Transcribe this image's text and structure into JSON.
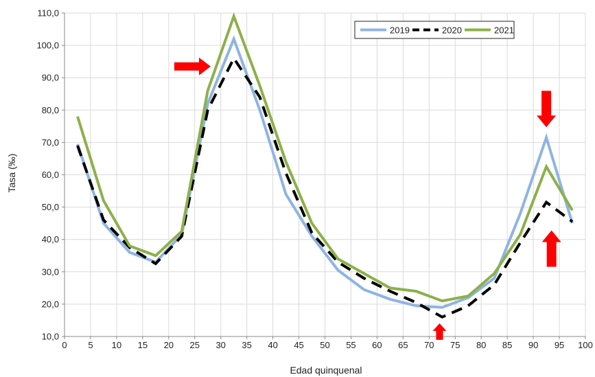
{
  "chart_data": {
    "type": "line",
    "title": "",
    "xlabel": "Edad quinquenal",
    "ylabel": "Tasa (‰)",
    "xlim": [
      0,
      100
    ],
    "ylim": [
      10,
      110
    ],
    "xticks": [
      "0",
      "5",
      "10",
      "15",
      "20",
      "25",
      "30",
      "35",
      "40",
      "45",
      "50",
      "55",
      "60",
      "65",
      "70",
      "75",
      "80",
      "85",
      "90",
      "95",
      "100"
    ],
    "yticks": [
      "10,0",
      "20,0",
      "30,0",
      "40,0",
      "50,0",
      "60,0",
      "70,0",
      "80,0",
      "90,0",
      "100,0",
      "110,0"
    ],
    "grid": true,
    "legend_position": "top-right",
    "x": [
      2.5,
      7.5,
      12.5,
      17.5,
      22.5,
      27.5,
      32.5,
      37.5,
      42.5,
      47.5,
      52.5,
      57.5,
      62.5,
      67.5,
      72.5,
      77.5,
      82.5,
      87.5,
      92.5,
      97.5
    ],
    "series": [
      {
        "name": "2019",
        "color": "#8fb4e3",
        "dash": "solid",
        "values": [
          69.5,
          45.0,
          36.0,
          33.0,
          41.5,
          82.0,
          102.0,
          80.0,
          54.0,
          41.0,
          30.5,
          24.5,
          21.5,
          19.5,
          19.0,
          22.0,
          28.0,
          48.0,
          71.5,
          45.0
        ]
      },
      {
        "name": "2020",
        "color": "#000000",
        "dash": "dashed",
        "values": [
          69.0,
          46.0,
          37.5,
          32.5,
          41.0,
          80.0,
          96.0,
          84.0,
          60.5,
          42.0,
          33.0,
          28.0,
          24.0,
          20.5,
          16.0,
          19.5,
          26.0,
          39.0,
          51.5,
          45.5
        ]
      },
      {
        "name": "2021",
        "color": "#8db04a",
        "dash": "solid",
        "values": [
          78.0,
          52.0,
          38.0,
          35.0,
          42.5,
          86.0,
          109.0,
          87.5,
          64.0,
          45.0,
          34.0,
          29.5,
          25.0,
          24.0,
          21.0,
          22.5,
          29.5,
          41.5,
          62.5,
          49.0
        ]
      }
    ],
    "annotations": [
      {
        "type": "arrow",
        "direction": "right",
        "color": "#ff0000",
        "x": 24.5,
        "y": 93.5
      },
      {
        "type": "arrow",
        "direction": "down",
        "color": "#ff0000",
        "x": 92.5,
        "y": 80.0
      },
      {
        "type": "arrow",
        "direction": "up",
        "color": "#ff0000",
        "x": 93.5,
        "y": 37.5
      },
      {
        "type": "arrow",
        "direction": "up",
        "color": "#ff0000",
        "x": 72.0,
        "y": 11.5
      }
    ]
  }
}
